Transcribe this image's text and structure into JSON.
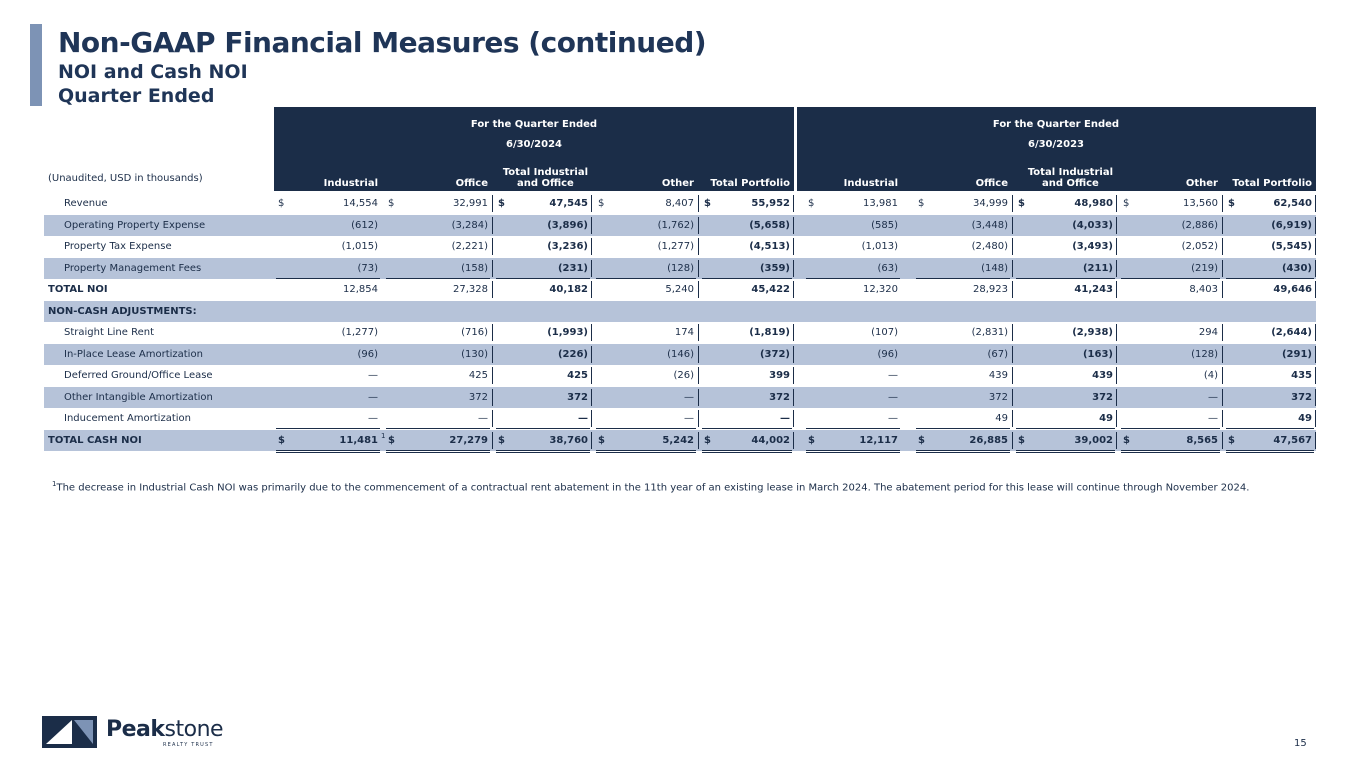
{
  "header": {
    "title": "Non-GAAP Financial Measures (continued)",
    "subtitle1": "NOI and Cash NOI",
    "subtitle2": "Quarter Ended"
  },
  "table": {
    "periods": [
      {
        "label": "For the Quarter Ended",
        "date": "6/30/2024"
      },
      {
        "label": "For the Quarter Ended",
        "date": "6/30/2023"
      }
    ],
    "units_label": "(Unaudited, USD in thousands)",
    "columns": [
      "Industrial",
      "Office",
      "Total Industrial\nand Office",
      "Other",
      "Total Portfolio",
      "Industrial",
      "Office",
      "Total Industrial\nand Office",
      "Other",
      "Total Portfolio"
    ],
    "dollar_sign": "$",
    "rows": [
      {
        "label": "Revenue",
        "values": [
          "14,554",
          "32,991",
          "47,545",
          "8,407",
          "55,952",
          "13,981",
          "34,999",
          "48,980",
          "13,560",
          "62,540"
        ]
      },
      {
        "label": "Operating Property Expense",
        "values": [
          "(612)",
          "(3,284)",
          "(3,896)",
          "(1,762)",
          "(5,658)",
          "(585)",
          "(3,448)",
          "(4,033)",
          "(2,886)",
          "(6,919)"
        ]
      },
      {
        "label": "Property Tax Expense",
        "values": [
          "(1,015)",
          "(2,221)",
          "(3,236)",
          "(1,277)",
          "(4,513)",
          "(1,013)",
          "(2,480)",
          "(3,493)",
          "(2,052)",
          "(5,545)"
        ]
      },
      {
        "label": "Property Management Fees",
        "values": [
          "(73)",
          "(158)",
          "(231)",
          "(128)",
          "(359)",
          "(63)",
          "(148)",
          "(211)",
          "(219)",
          "(430)"
        ]
      },
      {
        "label": "TOTAL NOI",
        "values": [
          "12,854",
          "27,328",
          "40,182",
          "5,240",
          "45,422",
          "12,320",
          "28,923",
          "41,243",
          "8,403",
          "49,646"
        ]
      },
      {
        "label": "NON-CASH ADJUSTMENTS:",
        "values": []
      },
      {
        "label": "Straight Line Rent",
        "values": [
          "(1,277)",
          "(716)",
          "(1,993)",
          "174",
          "(1,819)",
          "(107)",
          "(2,831)",
          "(2,938)",
          "294",
          "(2,644)"
        ]
      },
      {
        "label": "In-Place Lease Amortization",
        "values": [
          "(96)",
          "(130)",
          "(226)",
          "(146)",
          "(372)",
          "(96)",
          "(67)",
          "(163)",
          "(128)",
          "(291)"
        ]
      },
      {
        "label": "Deferred Ground/Office Lease",
        "values": [
          "—",
          "425",
          "425",
          "(26)",
          "399",
          "—",
          "439",
          "439",
          "(4)",
          "435"
        ]
      },
      {
        "label": "Other Intangible Amortization",
        "values": [
          "—",
          "372",
          "372",
          "—",
          "372",
          "—",
          "372",
          "372",
          "—",
          "372"
        ]
      },
      {
        "label": "Inducement Amortization",
        "values": [
          "—",
          "—",
          "—",
          "—",
          "—",
          "—",
          "49",
          "49",
          "—",
          "49"
        ]
      },
      {
        "label": "TOTAL CASH NOI",
        "values": [
          "11,481",
          "27,279",
          "38,760",
          "5,242",
          "44,002",
          "12,117",
          "26,885",
          "39,002",
          "8,565",
          "47,567"
        ]
      }
    ],
    "footnote_marker": "1"
  },
  "footnote": {
    "marker": "1",
    "text": "The decrease in Industrial Cash NOI was primarily due to the commencement of a contractual rent abatement in the 11th year of an existing lease in March 2024. The abatement period for this lease will continue through November 2024."
  },
  "logo": {
    "brand_bold": "Peak",
    "brand_thin": "stone",
    "tagline": "REALTY TRUST"
  },
  "page_number": "15",
  "colors": {
    "navy": "#1b2d48",
    "shade": "#b6c3d9",
    "accent": "#7d93b5"
  }
}
